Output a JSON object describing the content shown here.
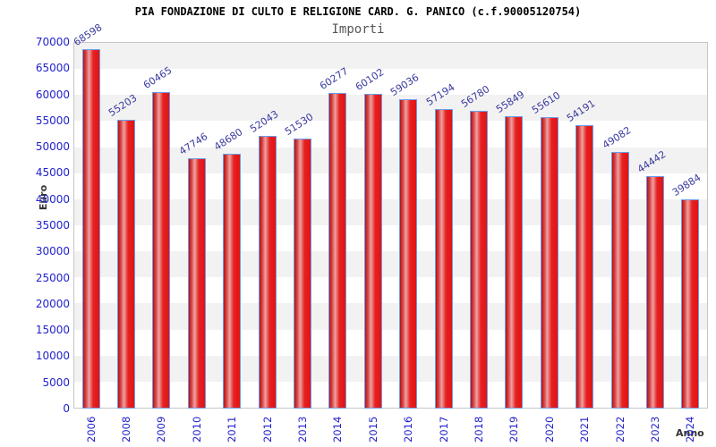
{
  "header": {
    "title": "PIA FONDAZIONE DI CULTO E RELIGIONE CARD. G. PANICO (c.f.90005120754)",
    "subtitle": "Importi"
  },
  "chart_data": {
    "type": "bar",
    "title": "PIA FONDAZIONE DI CULTO E RELIGIONE CARD. G. PANICO (c.f.90005120754)",
    "subtitle": "Importi",
    "xlabel": "Anno",
    "ylabel": "Euro",
    "categories": [
      "2006",
      "2008",
      "2009",
      "2010",
      "2011",
      "2012",
      "2013",
      "2014",
      "2015",
      "2016",
      "2017",
      "2018",
      "2019",
      "2020",
      "2021",
      "2022",
      "2023",
      "2024"
    ],
    "values": [
      68598,
      55203,
      60465,
      47746,
      48680,
      52043,
      51530,
      60277,
      60102,
      59036,
      57194,
      56780,
      55849,
      55610,
      54191,
      49082,
      44442,
      39884
    ],
    "ylim": [
      0,
      70000
    ],
    "ytick_step": 5000,
    "yticks": [
      0,
      5000,
      10000,
      15000,
      20000,
      25000,
      30000,
      35000,
      40000,
      45000,
      50000,
      55000,
      60000,
      65000,
      70000
    ],
    "grid": "alternating-horizontal-bands",
    "legend": "none",
    "colors": {
      "value_label": "#3a3aa0",
      "tick_label": "#2222cc",
      "axis_title": "#333333",
      "band_gray": "#f2f2f2",
      "band_white": "#ffffff",
      "plot_border": "#c6c6c6",
      "bar_border": "#6b9ce8",
      "bar_gradient": [
        "#b81010",
        "#d84848",
        "#efa2a2",
        "#e52222",
        "#e31212"
      ],
      "title_color": "#000000",
      "subtitle_color": "#555555"
    }
  }
}
